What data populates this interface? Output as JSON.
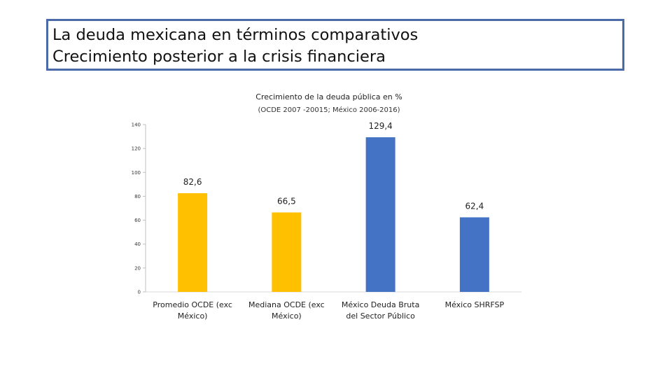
{
  "slide": {
    "title_line1": "La deuda mexicana en términos comparativos",
    "title_line2": "Crecimiento posterior a la crisis financiera"
  },
  "chart_data": {
    "type": "bar",
    "title": "Crecimiento de la deuda pública en %",
    "subtitle": "(OCDE 2007 -20015; México 2006-2016)",
    "categories": [
      [
        "Promedio OCDE (exc",
        "México)"
      ],
      [
        "Mediana OCDE (exc",
        "México)"
      ],
      [
        "México Deuda Bruta",
        "del Sector Público"
      ],
      [
        "México SHRFSP"
      ]
    ],
    "values": [
      82.6,
      66.5,
      129.4,
      62.4
    ],
    "value_labels": [
      "82,6",
      "66,5",
      "129,4",
      "62,4"
    ],
    "colors": [
      "#FFC000",
      "#FFC000",
      "#4472C4",
      "#4472C4"
    ],
    "ylim": [
      0,
      140
    ],
    "yticks": [
      0,
      20,
      40,
      60,
      80,
      100,
      120,
      140
    ],
    "xlabel": "",
    "ylabel": "",
    "grid": false
  }
}
